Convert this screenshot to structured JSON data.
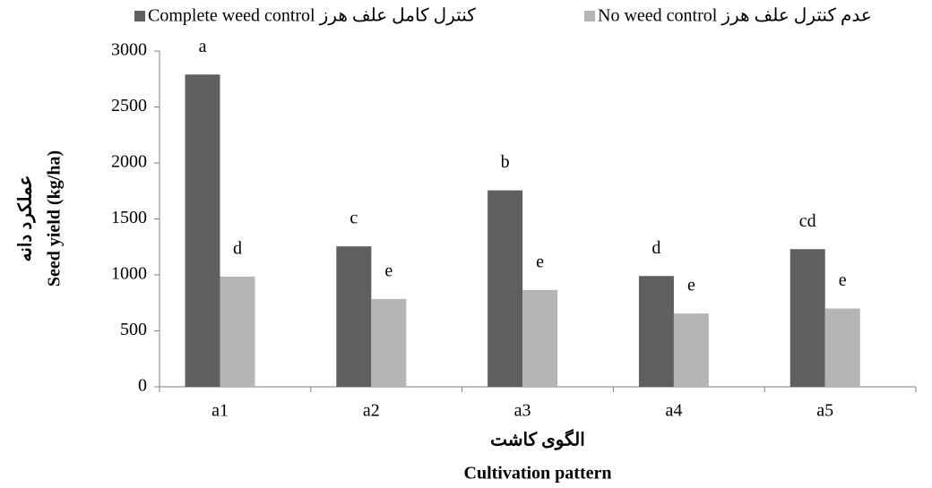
{
  "chart_data": {
    "type": "bar",
    "categories": [
      "a1",
      "a2",
      "a3",
      "a4",
      "a5"
    ],
    "series": [
      {
        "name": "Complete weed control کنترل کامل علف هرز",
        "color": "#5f5f5f",
        "values": [
          2790,
          1255,
          1755,
          990,
          1230
        ],
        "value_labels": [
          "a",
          "c",
          "b",
          "d",
          "cd"
        ]
      },
      {
        "name": "No weed control عدم کنترل علف هرز",
        "color": "#b5b5b5",
        "values": [
          985,
          785,
          865,
          655,
          700
        ],
        "value_labels": [
          "d",
          "e",
          "e",
          "e",
          "e"
        ]
      }
    ],
    "ylim": [
      0,
      3000
    ],
    "yticks": [
      0,
      500,
      1000,
      1500,
      2000,
      2500,
      3000
    ],
    "ylabel": [
      "عملکرد دانه",
      "Seed yield (kg/ha)"
    ],
    "xlabel": [
      "الگوی کاشت",
      "Cultivation pattern"
    ],
    "legend": "top"
  }
}
